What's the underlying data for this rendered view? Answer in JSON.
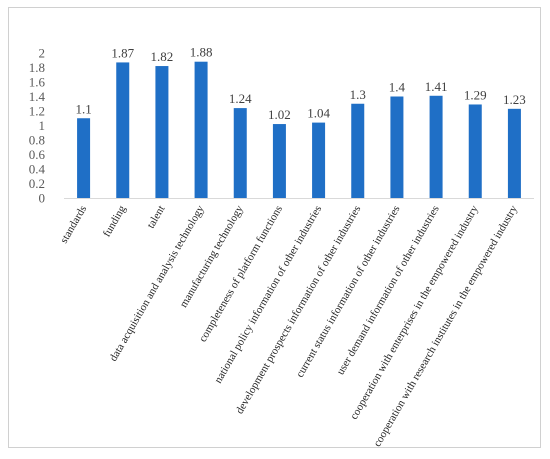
{
  "chart_data": {
    "type": "bar",
    "title": "",
    "xlabel": "",
    "ylabel": "",
    "ylim": [
      0,
      2
    ],
    "yticks": [
      0,
      0.2,
      0.4,
      0.6,
      0.8,
      1,
      1.2,
      1.4,
      1.6,
      1.8,
      2
    ],
    "grid": false,
    "legend": "none",
    "bar_color": "#1f6fc6",
    "categories": [
      "standards",
      "funding",
      "talent",
      "data acquisition and analysis technology",
      "manufacturing technology",
      "completeness of platform functions",
      "national policy information of other industries",
      "development prospects information of other industries",
      "current status information of other industries",
      "user demand information of other industries",
      "cooperation with enterprises in the empowered industry",
      "cooperation with research institutes in the empowered industry"
    ],
    "values": [
      1.1,
      1.87,
      1.82,
      1.88,
      1.24,
      1.02,
      1.04,
      1.3,
      1.4,
      1.41,
      1.29,
      1.23
    ],
    "data_labels": [
      "1.1",
      "1.87",
      "1.82",
      "1.88",
      "1.24",
      "1.02",
      "1.04",
      "1.3",
      "1.4",
      "1.41",
      "1.29",
      "1.23"
    ]
  }
}
